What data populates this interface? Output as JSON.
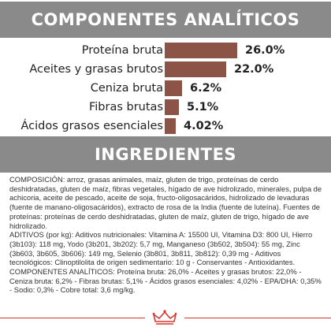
{
  "analytical": {
    "title": "COMPONENTES ANALÍTICOS",
    "bar_color": "#8c5446",
    "header_color": "#8a8a8a",
    "rows": [
      {
        "label": "Proteína bruta",
        "value": "26.0%",
        "amount": 26.0
      },
      {
        "label": "Aceites y grasas brutos",
        "value": "22.0%",
        "amount": 22.0
      },
      {
        "label": "Ceniza bruta",
        "value": "6.2%",
        "amount": 6.2
      },
      {
        "label": "Fibras brutas",
        "value": "5.1%",
        "amount": 5.1
      },
      {
        "label": "Ácidos grasos esenciales",
        "value": "4.02%",
        "amount": 4.02
      }
    ]
  },
  "ingredients": {
    "title": "INGREDIENTES",
    "text": "COMPOSICIÓN: arroz, grasas animales, maíz, gluten de trigo, proteínas de cerdo deshidratadas, gluten de maíz, fibras vegetales, hígado de ave hidrolizado, minerales, pulpa de achicoria, aceite de pescado, aceite de soja, fructo-oligosacáridos, hidrolizado de levaduras (fuente de manano-oligosacáridos), extracto de rosa de la India (fuente de luteína). Fuentes de proteínas: proteínas de cerdo deshidratadas, gluten de maíz, gluten de trigo, hígado de ave hidrolizado.\nADITIVOS (por kg): Aditivos nutricionales: Vitamina A: 15500 UI, Vitamina D3: 800 UI, Hierro (3b103): 118 mg, Yodo (3b201, 3b202): 5,7 mg, Manganeso (3b502, 3b504): 55 mg, Zinc (3b603, 3b605, 3b606): 149 mg, Selenio (3b801, 3b811, 3b812): 0,39 mg - Aditivos tecnológicos: Clinoptilolita de origen sedimentario: 10 g - Conservantes - Antioxidantes.\nCOMPONENTES ANALÍTICOS: Proteína bruta: 26,0% - Aceites y grasas brutos: 22,0% - Ceniza bruta: 6,2% - Fibras brutas: 5,1% - Ácidos grasos esenciales: 4,02% - EPA/DHA: 0,35% - Sodio: 0,3% - Cobre total: 3,6 mg/kg."
  },
  "footer": {
    "logo_icon": "royal-canin-crown-icon",
    "accent_color": "#d8342f"
  }
}
